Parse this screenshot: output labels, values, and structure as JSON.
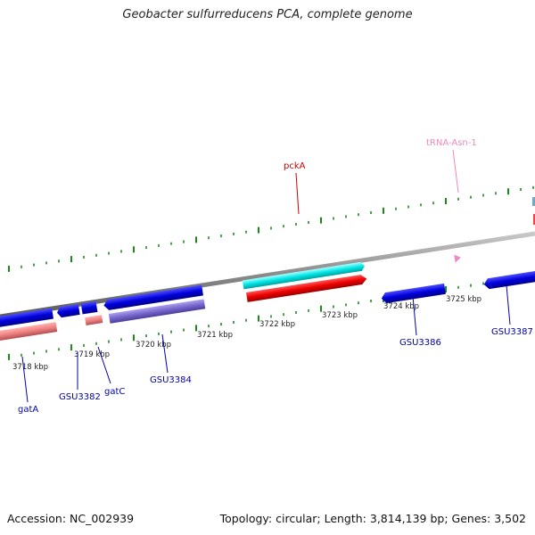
{
  "title": "Geobacter sulfurreducens PCA, complete genome",
  "footer": {
    "accession": "Accession: NC_002939",
    "summary": "Topology: circular; Length: 3,814,139 bp; Genes: 3,502"
  },
  "ticks": [
    "3718 kbp",
    "3719 kbp",
    "3720 kbp",
    "3721 kbp",
    "3722 kbp",
    "3723 kbp",
    "3724 kbp",
    "3725 kbp"
  ],
  "genes": {
    "pckA": "pckA",
    "trna": "tRNA-Asn-1",
    "gatA": "gatA",
    "gsu3382": "GSU3382",
    "gatC": "gatC",
    "gsu3384": "GSU3384",
    "gsu3386": "GSU3386",
    "gsu3387": "GSU3387"
  },
  "colors": {
    "forward_gene": "#0000dd",
    "reverse_gene": "#ee0000",
    "cds_forward": "#00e0e0",
    "cds_reverse": "#ee8080",
    "cds_purple": "#7766cc",
    "trna": "#ee88cc",
    "backbone": "#888888",
    "tick_green": "#1a8a1a",
    "label_blue": "#0000aa",
    "label_red": "#cc0000",
    "label_pink": "#ee88bb"
  }
}
